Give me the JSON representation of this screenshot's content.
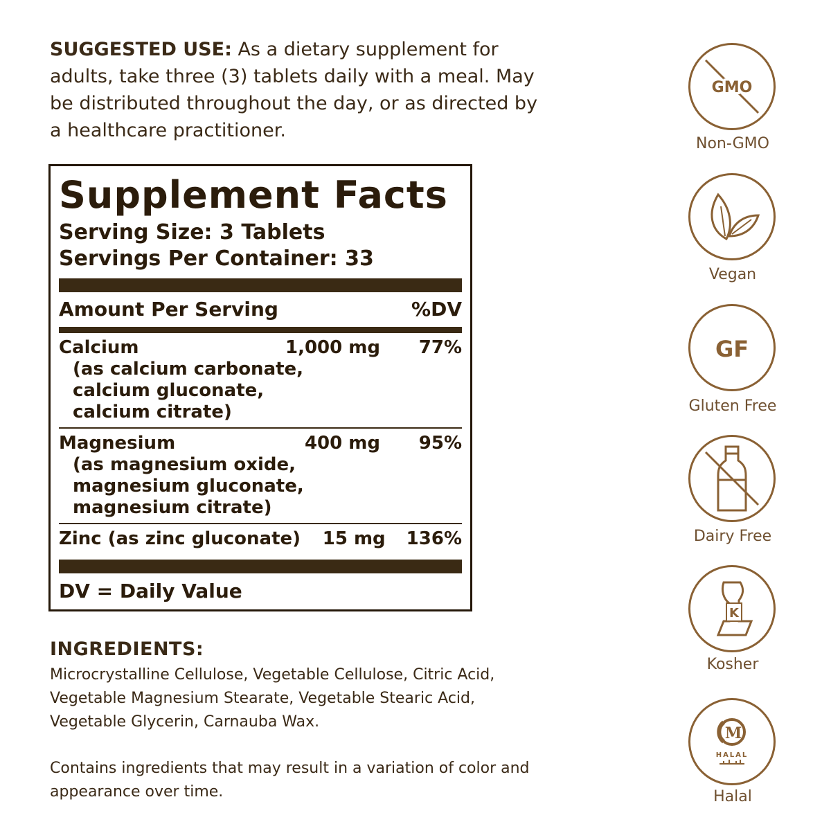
{
  "suggested_use": {
    "lead": "SUGGESTED USE:",
    "text": " As a dietary supplement for adults, take three (3) tablets daily with a meal. May be distributed throughout the day, or as directed by a healthcare practitioner."
  },
  "facts": {
    "title": "Supplement Facts",
    "serving_size": "Serving Size: 3 Tablets",
    "servings_per_container": "Servings Per Container: 33",
    "amount_header": "Amount Per Serving",
    "dv_header": "%DV",
    "nutrients": [
      {
        "name": "Calcium",
        "amount": "1,000 mg",
        "dv": "77%",
        "sub": [
          "(as calcium carbonate,",
          "calcium gluconate,",
          "calcium citrate)"
        ]
      },
      {
        "name": "Magnesium",
        "amount": "400 mg",
        "dv": "95%",
        "sub": [
          "(as magnesium oxide,",
          "magnesium gluconate,",
          "magnesium citrate)"
        ]
      },
      {
        "name": "Zinc (as zinc gluconate)",
        "amount": "15 mg",
        "dv": "136%"
      }
    ],
    "dv_note": "DV = Daily Value"
  },
  "ingredients": {
    "heading": "INGREDIENTS:",
    "text": "Microcrystalline Cellulose, Vegetable Cellulose, Citric Acid, Vegetable Magnesium Stearate, Vegetable Stearic Acid, Vegetable Glycerin, Carnauba Wax."
  },
  "disclaimer": "Contains ingredients that may result in a variation of color and appearance over time.",
  "badges": [
    {
      "icon": "gmo-crossed-icon",
      "icon_text": "GMO",
      "label": "Non-GMO"
    },
    {
      "icon": "leaf-icon",
      "label": "Vegan"
    },
    {
      "icon": "gluten-free-icon",
      "icon_text": "GF",
      "label": "Gluten Free"
    },
    {
      "icon": "milk-bottle-crossed-icon",
      "label": "Dairy Free"
    },
    {
      "icon": "kosher-k-icon",
      "icon_text": "K",
      "label": "Kosher"
    },
    {
      "icon": "halal-m-icon",
      "icon_text": "M",
      "icon_subtext": "HALAL",
      "label": "Halal"
    }
  ],
  "colors": {
    "text": "#3b2a17",
    "facts_dark": "#2b1c0b",
    "badge": "#8a6134"
  }
}
